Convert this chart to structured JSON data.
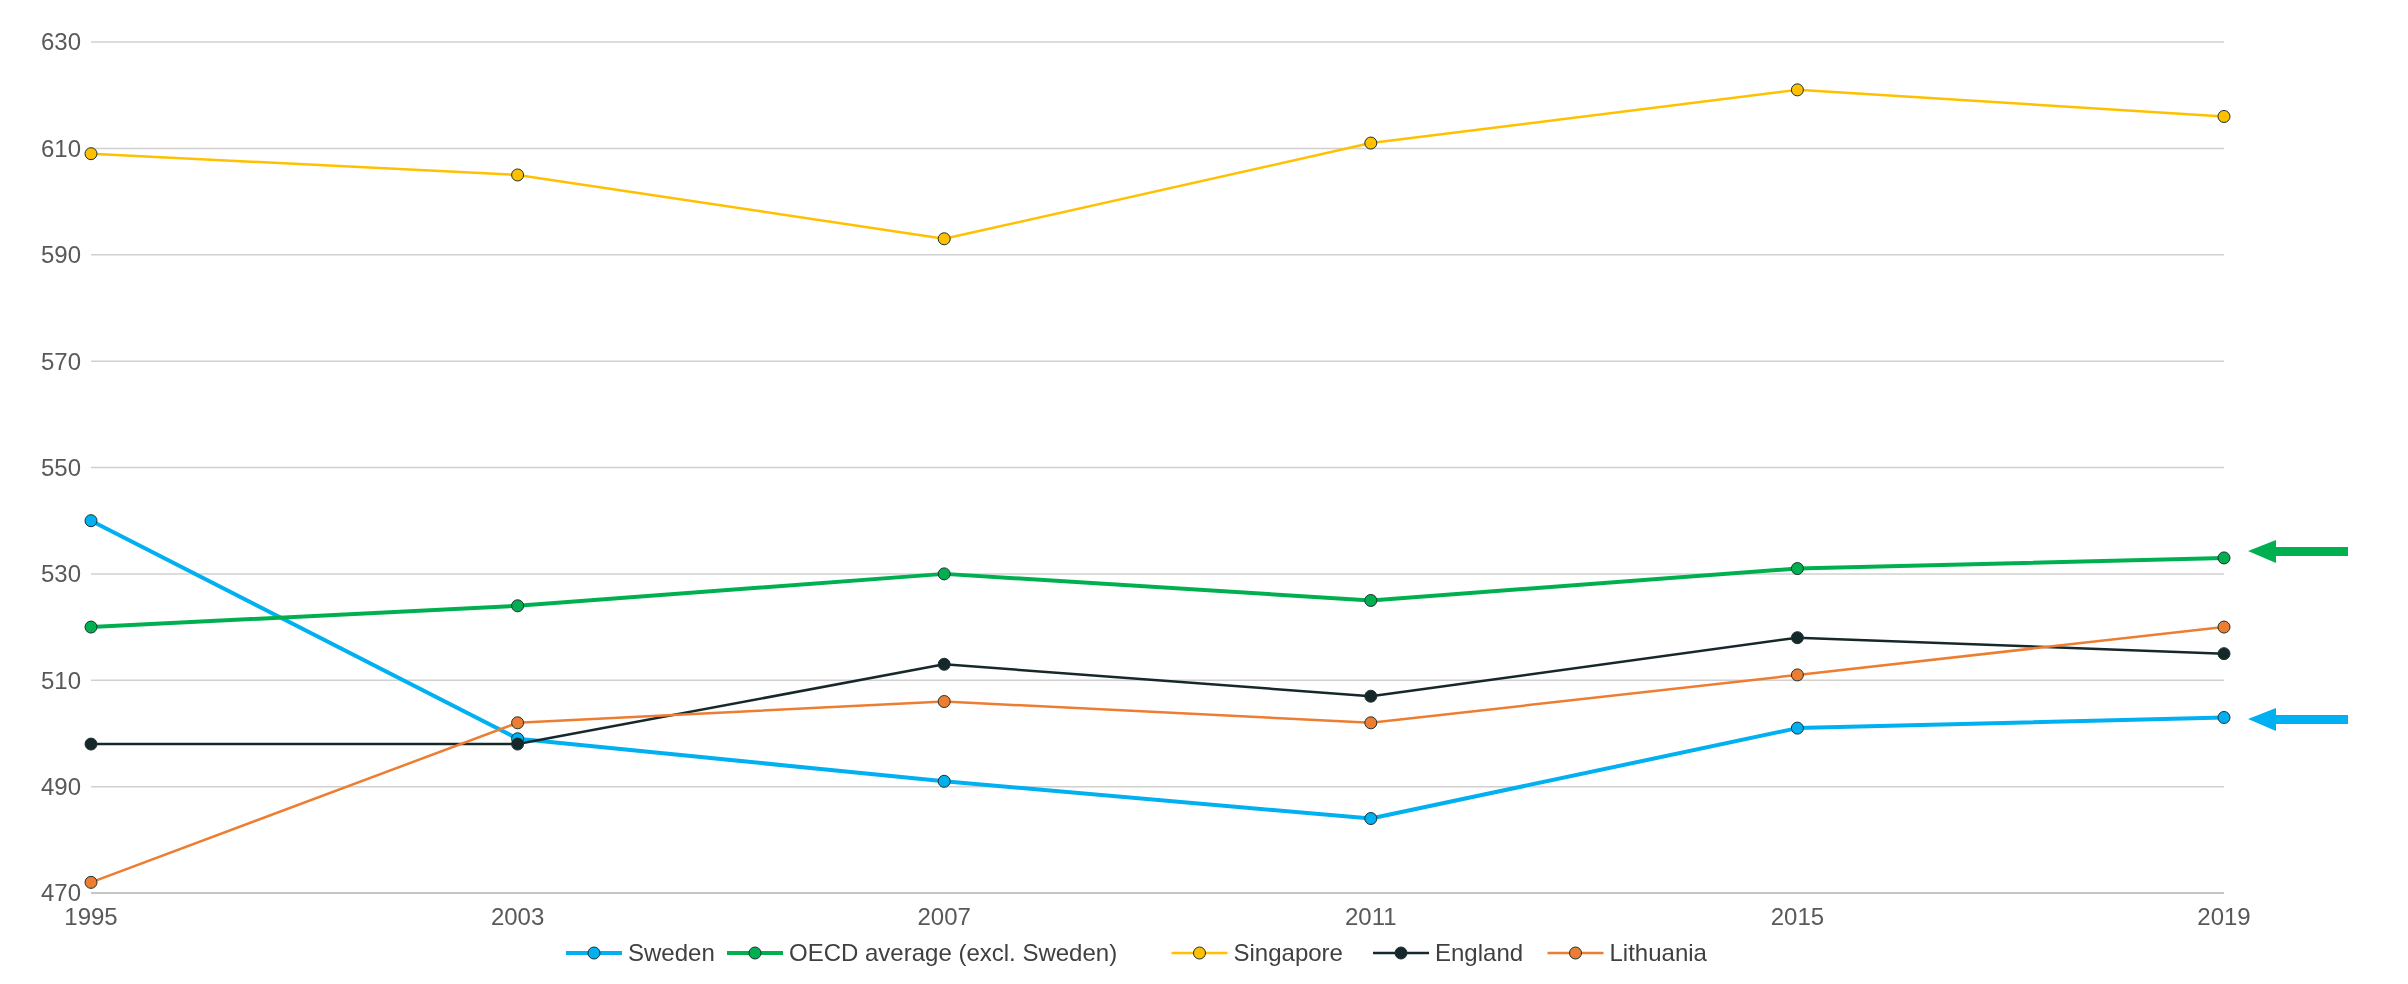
{
  "chart_data": {
    "type": "line",
    "categories": [
      "1995",
      "2003",
      "2007",
      "2011",
      "2015",
      "2019"
    ],
    "series": [
      {
        "name": "Sweden",
        "color": "#00b0f0",
        "values": [
          540,
          499,
          491,
          484,
          501,
          503
        ]
      },
      {
        "name": "OECD average (excl. Sweden)",
        "color": "#00b050",
        "values": [
          520,
          524,
          530,
          525,
          531,
          533
        ]
      },
      {
        "name": "Singapore",
        "color": "#ffc000",
        "values": [
          609,
          605,
          593,
          611,
          621,
          616
        ]
      },
      {
        "name": "England",
        "color": "#17282a",
        "values": [
          498,
          498,
          513,
          507,
          518,
          515
        ]
      },
      {
        "name": "Lithuania",
        "color": "#ed7d31",
        "values": [
          472,
          502,
          506,
          502,
          511,
          520
        ]
      }
    ],
    "ylim": [
      470,
      630
    ],
    "yticks": [
      470,
      490,
      510,
      530,
      550,
      570,
      590,
      610,
      630
    ],
    "grid": "y",
    "legend": "bottom",
    "marker": "circle",
    "line_style": "solid"
  }
}
